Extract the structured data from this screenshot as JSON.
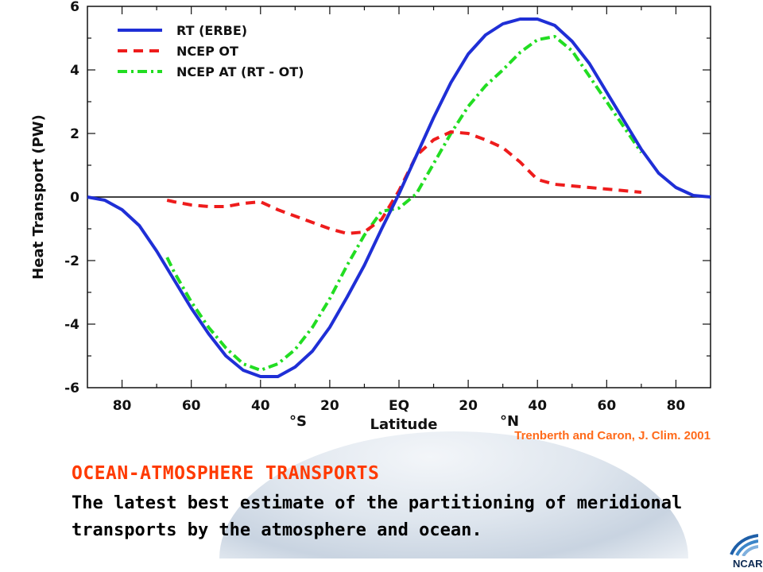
{
  "chart_data": {
    "type": "line",
    "xlabel": "Latitude",
    "ylabel": "Heat Transport (PW)",
    "xlim": [
      -90,
      90
    ],
    "ylim": [
      -6,
      6
    ],
    "x_ticks": [
      -80,
      -60,
      -40,
      -20,
      0,
      20,
      40,
      60,
      80
    ],
    "x_tick_labels": [
      "80",
      "60",
      "40",
      "20",
      "EQ",
      "20",
      "40",
      "60",
      "80"
    ],
    "y_ticks": [
      -6,
      -4,
      -2,
      0,
      2,
      4,
      6
    ],
    "y_tick_labels": [
      "-6",
      "-4",
      "-2",
      "0",
      "2",
      "4",
      "6"
    ],
    "hemisphere_labels": {
      "south": "°S",
      "north": "°N"
    },
    "zero_line": true,
    "legend_position": "top-left",
    "series": [
      {
        "name": "RT (ERBE)",
        "color": "#1f2fd6",
        "style": "solid",
        "x": [
          -90,
          -85,
          -80,
          -75,
          -70,
          -65,
          -60,
          -55,
          -50,
          -45,
          -40,
          -35,
          -30,
          -25,
          -20,
          -15,
          -10,
          -5,
          0,
          5,
          10,
          15,
          20,
          25,
          30,
          35,
          40,
          45,
          50,
          55,
          60,
          65,
          70,
          75,
          80,
          85,
          90
        ],
        "y": [
          0,
          -0.1,
          -0.4,
          -0.9,
          -1.7,
          -2.6,
          -3.5,
          -4.3,
          -5.0,
          -5.45,
          -5.65,
          -5.65,
          -5.35,
          -4.85,
          -4.1,
          -3.15,
          -2.15,
          -1.0,
          0.1,
          1.3,
          2.5,
          3.6,
          4.5,
          5.1,
          5.45,
          5.6,
          5.6,
          5.4,
          4.9,
          4.2,
          3.3,
          2.4,
          1.5,
          0.75,
          0.3,
          0.05,
          0
        ]
      },
      {
        "name": "NCEP OT",
        "color": "#ee1c1c",
        "style": "dashed",
        "x": [
          -67,
          -65,
          -60,
          -55,
          -50,
          -45,
          -40,
          -35,
          -30,
          -25,
          -20,
          -15,
          -10,
          -5,
          0,
          5,
          10,
          15,
          20,
          25,
          30,
          35,
          40,
          45,
          50,
          55,
          60,
          65,
          70
        ],
        "y": [
          -0.1,
          -0.15,
          -0.25,
          -0.3,
          -0.3,
          -0.2,
          -0.15,
          -0.4,
          -0.6,
          -0.8,
          -1.0,
          -1.15,
          -1.1,
          -0.7,
          0.2,
          1.3,
          1.8,
          2.05,
          2.0,
          1.8,
          1.55,
          1.1,
          0.55,
          0.4,
          0.35,
          0.3,
          0.25,
          0.2,
          0.15
        ]
      },
      {
        "name": "NCEP AT (RT - OT)",
        "color": "#22dd22",
        "style": "dashdot",
        "x": [
          -67,
          -65,
          -60,
          -55,
          -50,
          -45,
          -40,
          -35,
          -30,
          -25,
          -20,
          -15,
          -10,
          -5,
          0,
          5,
          10,
          15,
          20,
          25,
          30,
          35,
          40,
          45,
          50,
          55,
          60,
          65,
          70
        ],
        "y": [
          -1.9,
          -2.35,
          -3.3,
          -4.1,
          -4.75,
          -5.25,
          -5.45,
          -5.25,
          -4.8,
          -4.1,
          -3.2,
          -2.15,
          -1.2,
          -0.45,
          -0.35,
          0.1,
          1.05,
          2.0,
          2.85,
          3.5,
          4.0,
          4.55,
          4.95,
          5.05,
          4.6,
          3.8,
          3.0,
          2.2,
          1.4
        ]
      }
    ]
  },
  "citation": "Trenberth and Caron, J. Clim. 2001",
  "headline": "OCEAN-ATMOSPHERE  TRANSPORTS",
  "caption": "The latest best estimate of the partitioning of meridional transports by the atmosphere and ocean.",
  "logo_text": "NCAR",
  "colors": {
    "headline": "#ff3a00",
    "citation": "#ff6a1a",
    "zero_line": "#000000"
  }
}
